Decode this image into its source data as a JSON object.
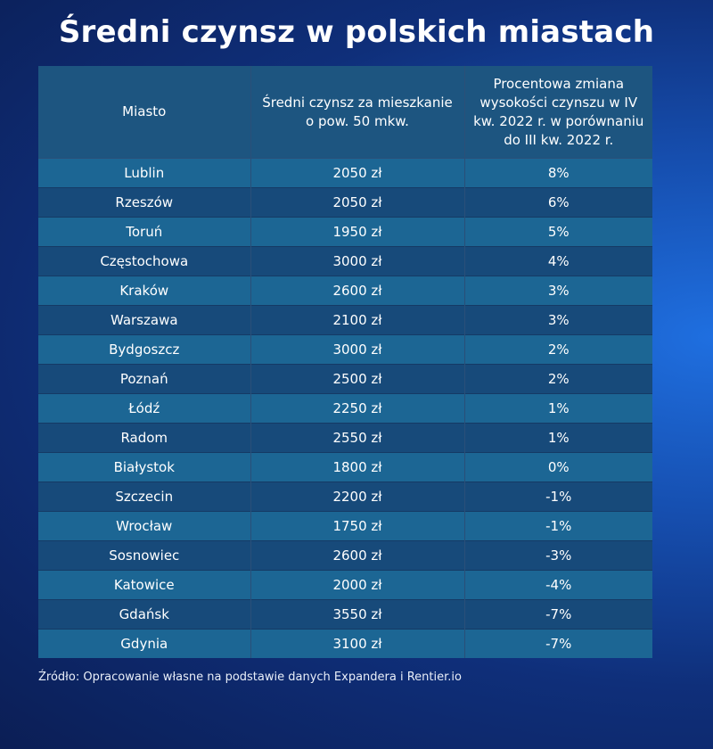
{
  "title": "Średni czynsz w polskich miastach",
  "source": "Źródło: Opracowanie własne na podstawie danych Expandera i Rentier.io",
  "chart_data": {
    "type": "table",
    "title": "Średni czynsz w polskich miastach",
    "columns": [
      "Miasto",
      "Średni czynsz za mieszkanie o pow. 50 mkw.",
      "Procentowa zmiana wysokości czynszu w IV kw. 2022 r. w porównaniu do III kw. 2022 r."
    ],
    "rows": [
      [
        "Lublin",
        "2050 zł",
        "8%"
      ],
      [
        "Rzeszów",
        "2050 zł",
        "6%"
      ],
      [
        "Toruń",
        "1950 zł",
        "5%"
      ],
      [
        "Częstochowa",
        "3000 zł",
        "4%"
      ],
      [
        "Kraków",
        "2600 zł",
        "3%"
      ],
      [
        "Warszawa",
        "2100 zł",
        "3%"
      ],
      [
        "Bydgoszcz",
        "3000 zł",
        "2%"
      ],
      [
        "Poznań",
        "2500 zł",
        "2%"
      ],
      [
        "Łódź",
        "2250 zł",
        "1%"
      ],
      [
        "Radom",
        "2550 zł",
        "1%"
      ],
      [
        "Białystok",
        "1800 zł",
        "0%"
      ],
      [
        "Szczecin",
        "2200 zł",
        "-1%"
      ],
      [
        "Wrocław",
        "1750 zł",
        "-1%"
      ],
      [
        "Sosnowiec",
        "2600 zł",
        "-3%"
      ],
      [
        "Katowice",
        "2000 zł",
        "-4%"
      ],
      [
        "Gdańsk",
        "3550 zł",
        "-7%"
      ],
      [
        "Gdynia",
        "3100 zł",
        "-7%"
      ]
    ]
  }
}
